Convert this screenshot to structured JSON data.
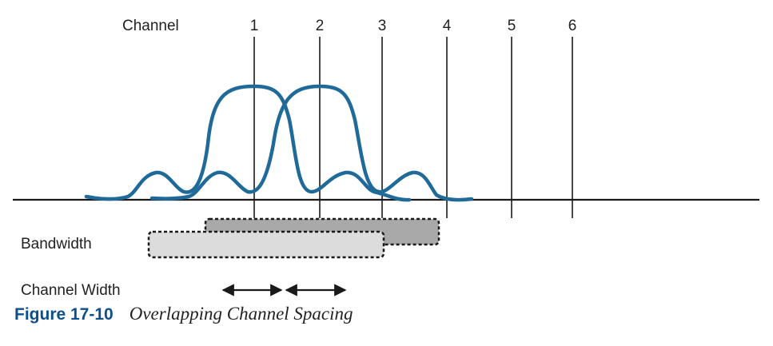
{
  "diagram": {
    "channel_heading": "Channel",
    "channels": [
      "1",
      "2",
      "3",
      "4",
      "5",
      "6"
    ],
    "bandwidth_label": "Bandwidth",
    "channel_width_label": "Channel Width",
    "colors": {
      "signal": "#1f6a98",
      "line": "#1a1a1a",
      "band_dark": "#a9a9a9",
      "band_light": "#dcdcdc"
    }
  },
  "caption": {
    "figure_number": "Figure 17-10",
    "title": "Overlapping Channel Spacing"
  }
}
